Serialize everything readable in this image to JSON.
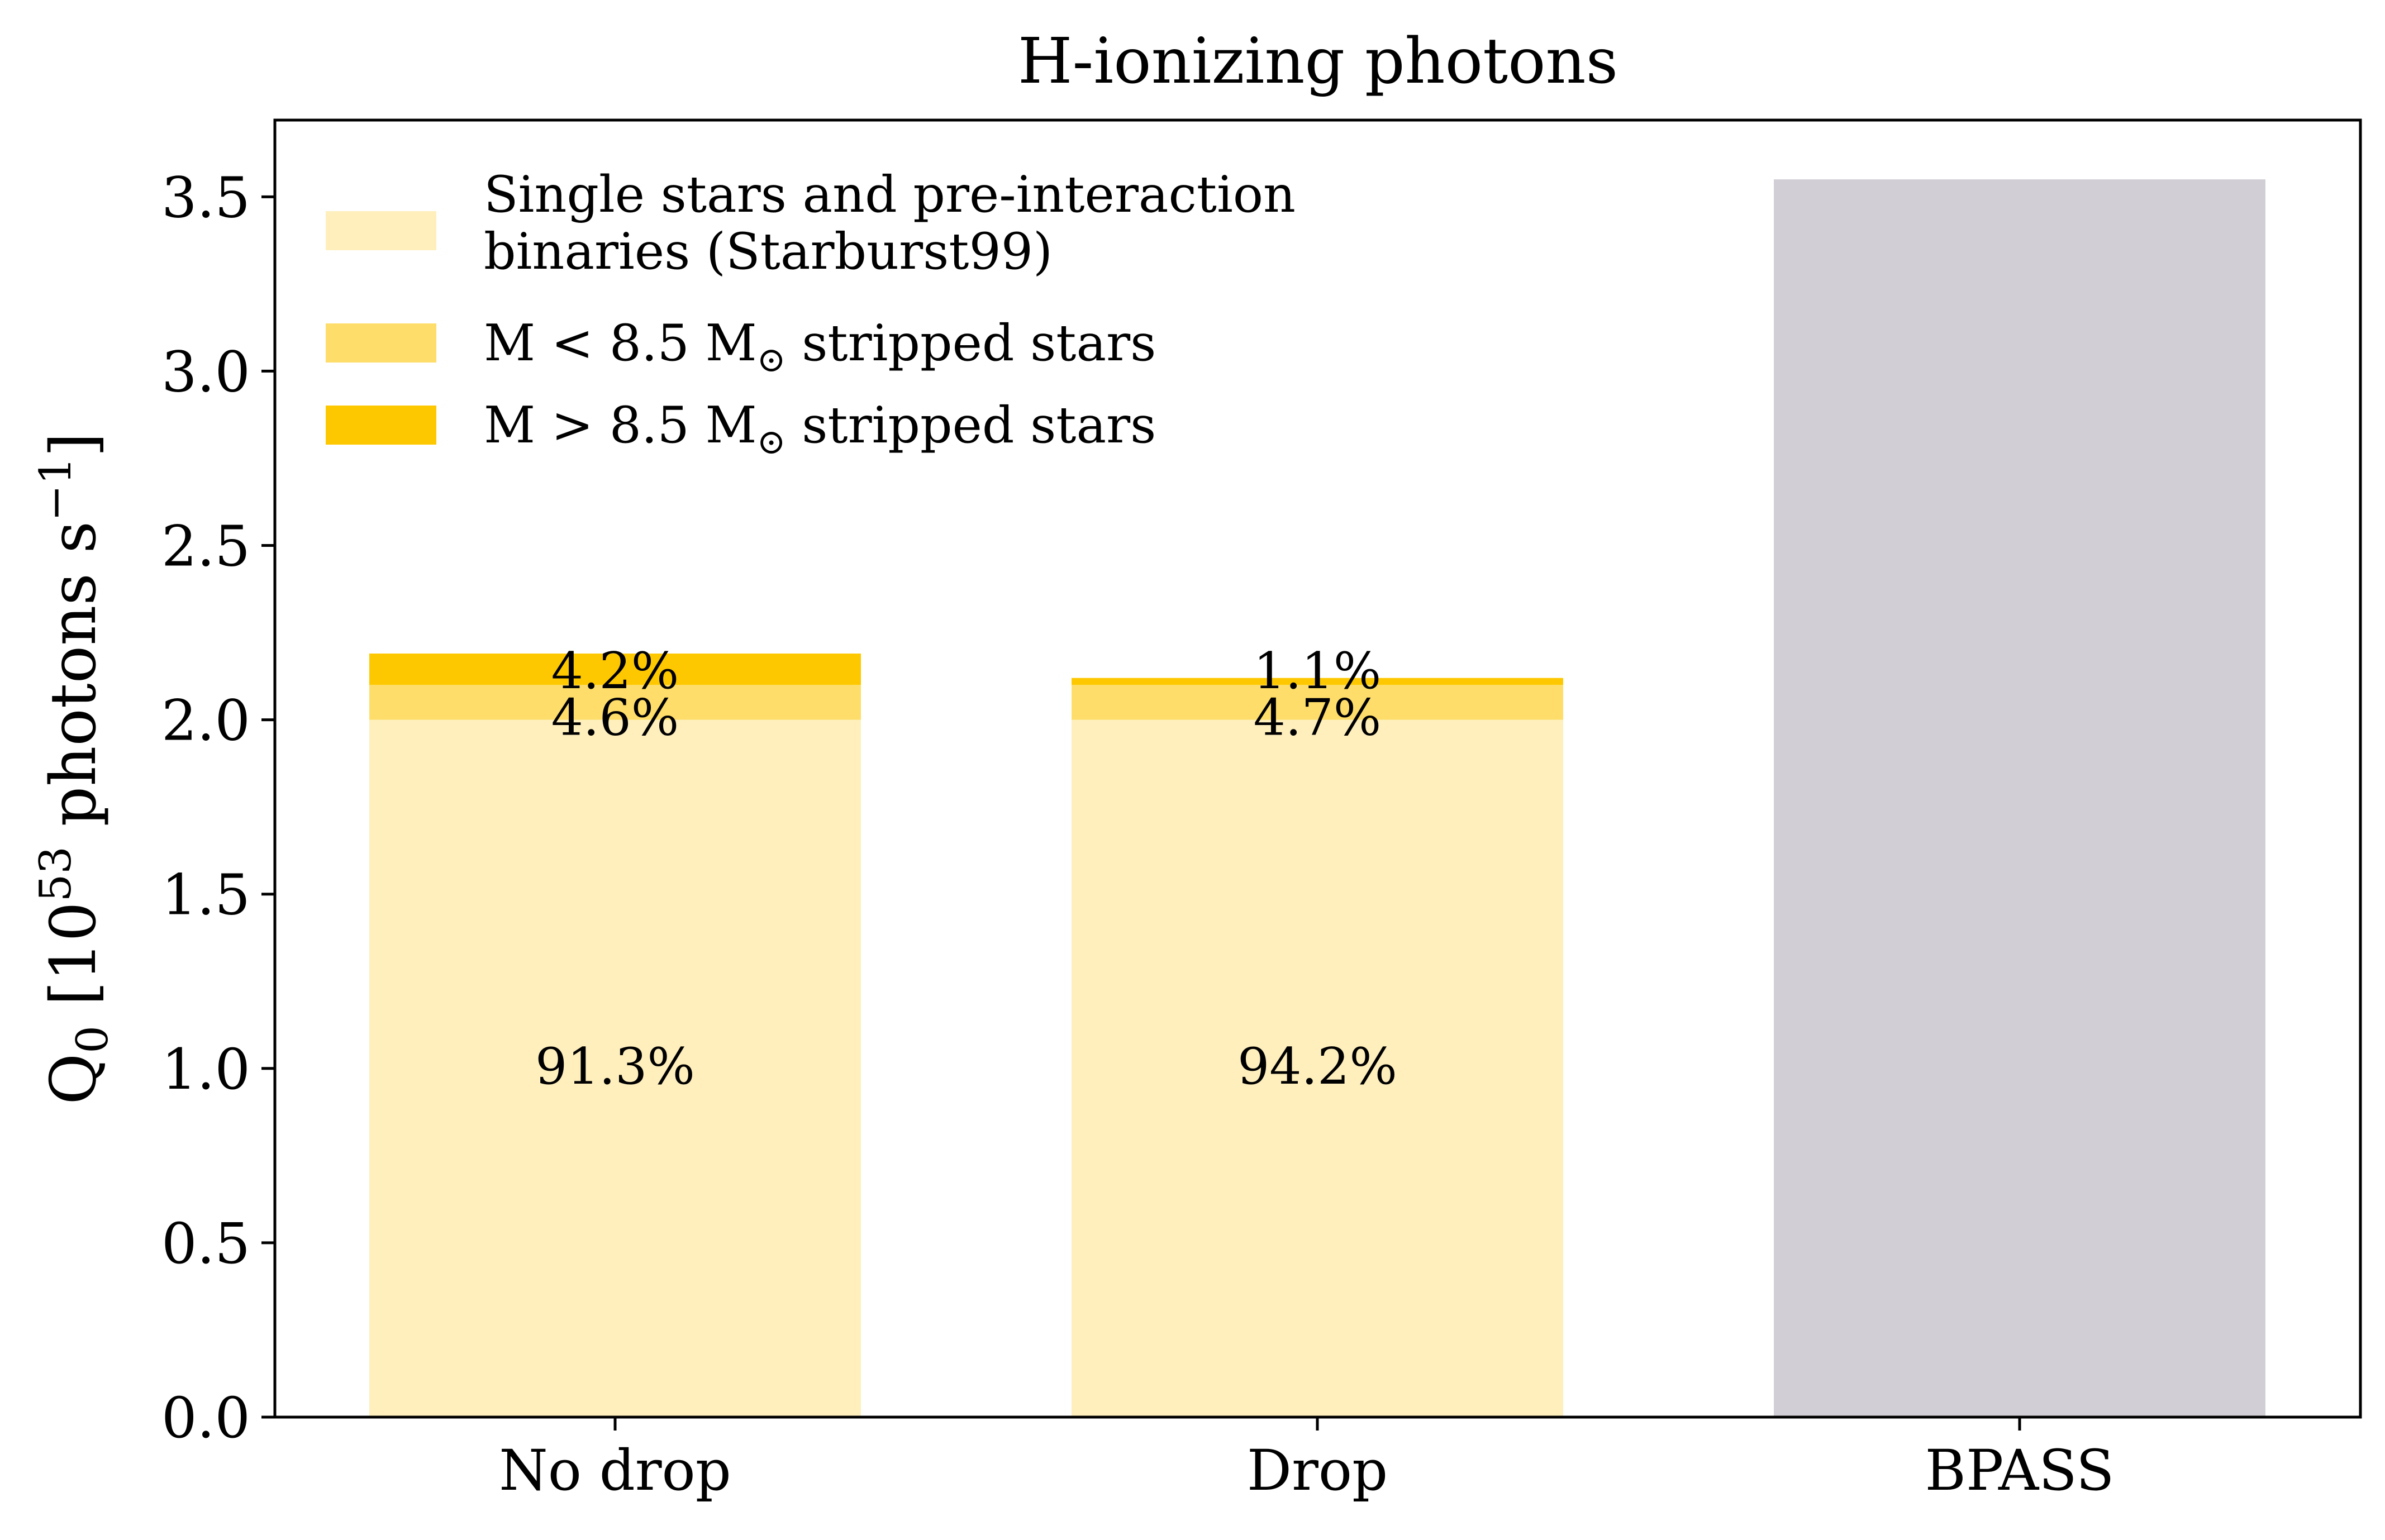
{
  "chart_data": {
    "type": "bar",
    "stacked": true,
    "title": "H-ionizing photons",
    "ylabel": {
      "prefix": "Q",
      "prefix_sub": "0",
      "mid": " [10",
      "exp1": "53",
      "mid2": " photons s",
      "exp2": "−1",
      "suffix": "]"
    },
    "xlabel": "",
    "categories": [
      "No drop",
      "Drop",
      "BPASS"
    ],
    "ylim": [
      0,
      3.72
    ],
    "yticks": [
      0.0,
      0.5,
      1.0,
      1.5,
      2.0,
      2.5,
      3.0,
      3.5
    ],
    "ytick_labels": [
      "0.0",
      "0.5",
      "1.0",
      "1.5",
      "2.0",
      "2.5",
      "3.0",
      "3.5"
    ],
    "grid": false,
    "legend_position": "top-left",
    "series": [
      {
        "name_lines": [
          "Single stars and pre-interaction",
          "binaries (Starburst99)"
        ],
        "color": "#feefbd",
        "values": [
          2.0,
          2.0,
          0
        ],
        "labels": [
          "91.3%",
          "94.2%",
          ""
        ]
      },
      {
        "name_parts": [
          "M < 8.5 M",
          "⊙",
          " stripped stars"
        ],
        "color": "#fedd6a",
        "values": [
          0.1,
          0.1,
          0
        ],
        "labels": [
          "4.6%",
          "4.7%",
          ""
        ]
      },
      {
        "name_parts": [
          "M > 8.5 M",
          "⊙",
          " stripped stars"
        ],
        "color": "#fec800",
        "values": [
          0.09,
          0.02,
          0
        ],
        "labels": [
          "4.2%",
          "1.1%",
          ""
        ]
      },
      {
        "color": "#d2ced5",
        "values": [
          0,
          0,
          3.55
        ],
        "labels": [
          "",
          "",
          ""
        ]
      }
    ]
  }
}
